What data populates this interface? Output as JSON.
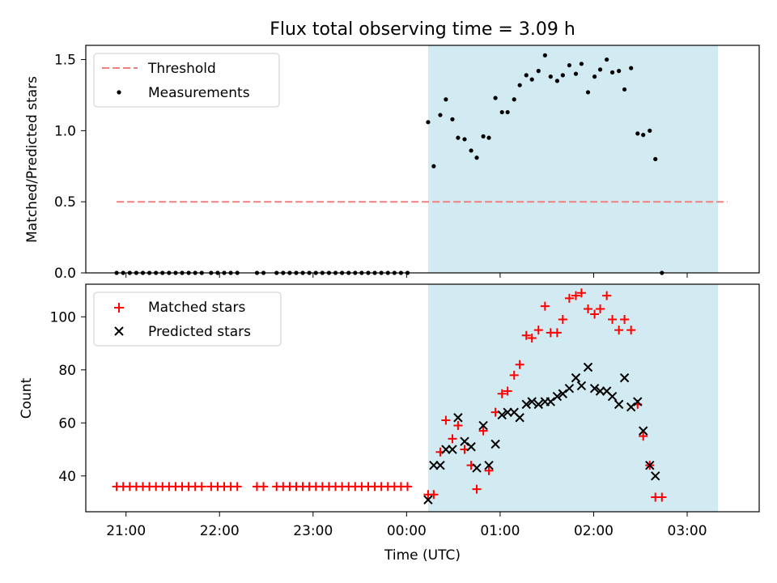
{
  "chart_data": {
    "title": "Flux total observing time = 3.09 h",
    "xlabel": "Time (UTC)",
    "x_unit": "hours since 21:00 UTC",
    "x_range": [
      -0.43,
      6.77
    ],
    "x_ticks": [
      {
        "value": 0,
        "label": "21:00"
      },
      {
        "value": 1,
        "label": "22:00"
      },
      {
        "value": 2,
        "label": "23:00"
      },
      {
        "value": 3,
        "label": "00:00"
      },
      {
        "value": 4,
        "label": "01:00"
      },
      {
        "value": 5,
        "label": "02:00"
      },
      {
        "value": 6,
        "label": "03:00"
      }
    ],
    "observing_window": {
      "start": 3.23,
      "end": 6.33,
      "color": "#add8e6"
    },
    "top": {
      "type": "scatter",
      "ylabel": "Matched/Predicted stars",
      "ylim": [
        0,
        1.6
      ],
      "yticks": [
        {
          "value": 0.0,
          "label": "0.0"
        },
        {
          "value": 0.5,
          "label": "0.5"
        },
        {
          "value": 1.0,
          "label": "1.0"
        },
        {
          "value": 1.5,
          "label": "1.5"
        }
      ],
      "threshold": {
        "name": "Threshold",
        "value": 0.5,
        "x_start": -0.1,
        "x_end": 6.43,
        "color": "#f08080"
      },
      "series": {
        "name": "Measurements",
        "color": "#000000",
        "points": [
          [
            -0.1,
            0
          ],
          [
            -0.03,
            0
          ],
          [
            0.04,
            0
          ],
          [
            0.11,
            0
          ],
          [
            0.18,
            0
          ],
          [
            0.25,
            0
          ],
          [
            0.32,
            0
          ],
          [
            0.39,
            0
          ],
          [
            0.46,
            0
          ],
          [
            0.53,
            0
          ],
          [
            0.6,
            0
          ],
          [
            0.67,
            0
          ],
          [
            0.74,
            0
          ],
          [
            0.81,
            0
          ],
          [
            0.91,
            0
          ],
          [
            0.98,
            0
          ],
          [
            1.05,
            0
          ],
          [
            1.12,
            0
          ],
          [
            1.19,
            0
          ],
          [
            1.4,
            0
          ],
          [
            1.47,
            0
          ],
          [
            1.61,
            0
          ],
          [
            1.68,
            0
          ],
          [
            1.75,
            0
          ],
          [
            1.82,
            0
          ],
          [
            1.89,
            0
          ],
          [
            1.96,
            0
          ],
          [
            2.03,
            0
          ],
          [
            2.1,
            0
          ],
          [
            2.17,
            0
          ],
          [
            2.24,
            0
          ],
          [
            2.31,
            0
          ],
          [
            2.38,
            0
          ],
          [
            2.45,
            0
          ],
          [
            2.52,
            0
          ],
          [
            2.59,
            0
          ],
          [
            2.66,
            0
          ],
          [
            2.73,
            0
          ],
          [
            2.8,
            0
          ],
          [
            2.87,
            0
          ],
          [
            2.94,
            0
          ],
          [
            3.01,
            0
          ],
          [
            3.23,
            1.06
          ],
          [
            3.29,
            0.75
          ],
          [
            3.36,
            1.11
          ],
          [
            3.42,
            1.22
          ],
          [
            3.49,
            1.08
          ],
          [
            3.55,
            0.95
          ],
          [
            3.62,
            0.94
          ],
          [
            3.69,
            0.86
          ],
          [
            3.75,
            0.81
          ],
          [
            3.82,
            0.96
          ],
          [
            3.88,
            0.95
          ],
          [
            3.95,
            1.23
          ],
          [
            4.02,
            1.13
          ],
          [
            4.08,
            1.13
          ],
          [
            4.15,
            1.22
          ],
          [
            4.21,
            1.32
          ],
          [
            4.28,
            1.39
          ],
          [
            4.34,
            1.36
          ],
          [
            4.41,
            1.42
          ],
          [
            4.48,
            1.53
          ],
          [
            4.54,
            1.38
          ],
          [
            4.61,
            1.35
          ],
          [
            4.67,
            1.39
          ],
          [
            4.74,
            1.46
          ],
          [
            4.81,
            1.4
          ],
          [
            4.87,
            1.47
          ],
          [
            4.94,
            1.27
          ],
          [
            5.01,
            1.38
          ],
          [
            5.07,
            1.43
          ],
          [
            5.14,
            1.5
          ],
          [
            5.2,
            1.41
          ],
          [
            5.27,
            1.42
          ],
          [
            5.33,
            1.29
          ],
          [
            5.4,
            1.44
          ],
          [
            5.47,
            0.98
          ],
          [
            5.53,
            0.97
          ],
          [
            5.6,
            1.0
          ],
          [
            5.66,
            0.8
          ],
          [
            5.73,
            0
          ]
        ]
      },
      "legend": {
        "position": "top-left",
        "entries": [
          "Threshold",
          "Measurements"
        ]
      }
    },
    "bottom": {
      "type": "scatter",
      "ylabel": "Count",
      "ylim": [
        26.5,
        112.3
      ],
      "yticks": [
        {
          "value": 40,
          "label": "40"
        },
        {
          "value": 60,
          "label": "60"
        },
        {
          "value": 80,
          "label": "80"
        },
        {
          "value": 100,
          "label": "100"
        }
      ],
      "series": [
        {
          "name": "Matched stars",
          "marker": "plus",
          "color": "#ff0000",
          "points": [
            [
              -0.1,
              36
            ],
            [
              -0.03,
              36
            ],
            [
              0.04,
              36
            ],
            [
              0.11,
              36
            ],
            [
              0.18,
              36
            ],
            [
              0.25,
              36
            ],
            [
              0.32,
              36
            ],
            [
              0.39,
              36
            ],
            [
              0.46,
              36
            ],
            [
              0.53,
              36
            ],
            [
              0.6,
              36
            ],
            [
              0.67,
              36
            ],
            [
              0.74,
              36
            ],
            [
              0.81,
              36
            ],
            [
              0.91,
              36
            ],
            [
              0.98,
              36
            ],
            [
              1.05,
              36
            ],
            [
              1.12,
              36
            ],
            [
              1.19,
              36
            ],
            [
              1.4,
              36
            ],
            [
              1.47,
              36
            ],
            [
              1.61,
              36
            ],
            [
              1.68,
              36
            ],
            [
              1.75,
              36
            ],
            [
              1.82,
              36
            ],
            [
              1.89,
              36
            ],
            [
              1.96,
              36
            ],
            [
              2.03,
              36
            ],
            [
              2.1,
              36
            ],
            [
              2.17,
              36
            ],
            [
              2.24,
              36
            ],
            [
              2.31,
              36
            ],
            [
              2.38,
              36
            ],
            [
              2.45,
              36
            ],
            [
              2.52,
              36
            ],
            [
              2.59,
              36
            ],
            [
              2.66,
              36
            ],
            [
              2.73,
              36
            ],
            [
              2.8,
              36
            ],
            [
              2.87,
              36
            ],
            [
              2.94,
              36
            ],
            [
              3.01,
              36
            ],
            [
              3.23,
              33
            ],
            [
              3.29,
              33
            ],
            [
              3.36,
              49
            ],
            [
              3.42,
              61
            ],
            [
              3.49,
              54
            ],
            [
              3.55,
              59
            ],
            [
              3.62,
              50
            ],
            [
              3.69,
              44
            ],
            [
              3.75,
              35
            ],
            [
              3.82,
              57
            ],
            [
              3.88,
              42
            ],
            [
              3.95,
              64
            ],
            [
              4.02,
              71
            ],
            [
              4.08,
              72
            ],
            [
              4.15,
              78
            ],
            [
              4.21,
              82
            ],
            [
              4.28,
              93
            ],
            [
              4.34,
              92
            ],
            [
              4.41,
              95
            ],
            [
              4.48,
              104
            ],
            [
              4.54,
              94
            ],
            [
              4.61,
              94
            ],
            [
              4.67,
              99
            ],
            [
              4.74,
              107
            ],
            [
              4.81,
              108
            ],
            [
              4.87,
              109
            ],
            [
              4.94,
              103
            ],
            [
              5.01,
              101
            ],
            [
              5.07,
              103
            ],
            [
              5.14,
              108
            ],
            [
              5.2,
              99
            ],
            [
              5.27,
              95
            ],
            [
              5.33,
              99
            ],
            [
              5.4,
              95
            ],
            [
              5.47,
              67
            ],
            [
              5.53,
              55
            ],
            [
              5.6,
              44
            ],
            [
              5.66,
              32
            ],
            [
              5.73,
              32
            ]
          ]
        },
        {
          "name": "Predicted stars",
          "marker": "x",
          "color": "#000000",
          "points": [
            [
              3.23,
              31
            ],
            [
              3.29,
              44
            ],
            [
              3.36,
              44
            ],
            [
              3.42,
              50
            ],
            [
              3.49,
              50
            ],
            [
              3.55,
              62
            ],
            [
              3.62,
              53
            ],
            [
              3.69,
              51
            ],
            [
              3.75,
              43
            ],
            [
              3.82,
              59
            ],
            [
              3.88,
              44
            ],
            [
              3.95,
              52
            ],
            [
              4.02,
              63
            ],
            [
              4.08,
              64
            ],
            [
              4.15,
              64
            ],
            [
              4.21,
              62
            ],
            [
              4.28,
              67
            ],
            [
              4.34,
              68
            ],
            [
              4.41,
              67
            ],
            [
              4.48,
              68
            ],
            [
              4.54,
              68
            ],
            [
              4.61,
              70
            ],
            [
              4.67,
              71
            ],
            [
              4.74,
              73
            ],
            [
              4.81,
              77
            ],
            [
              4.87,
              74
            ],
            [
              4.94,
              81
            ],
            [
              5.01,
              73
            ],
            [
              5.07,
              72
            ],
            [
              5.14,
              72
            ],
            [
              5.2,
              70
            ],
            [
              5.27,
              67
            ],
            [
              5.33,
              77
            ],
            [
              5.4,
              66
            ],
            [
              5.47,
              68
            ],
            [
              5.53,
              57
            ],
            [
              5.6,
              44
            ],
            [
              5.66,
              40
            ]
          ]
        }
      ],
      "legend": {
        "position": "top-left",
        "entries": [
          "Matched stars",
          "Predicted stars"
        ]
      }
    }
  }
}
